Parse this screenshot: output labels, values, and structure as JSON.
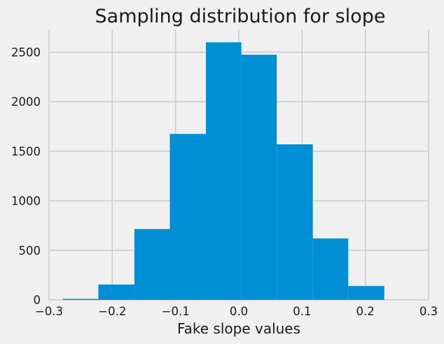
{
  "chart_data": {
    "type": "bar",
    "title": "Sampling distribution for slope",
    "xlabel": "Fake slope values",
    "ylabel": "",
    "grid": true,
    "legend": "none",
    "bar_color": "#008fd5",
    "background_color": "#f0f0f0",
    "grid_color": "#cbcbcb",
    "xlim": [
      -0.3,
      0.3
    ],
    "ylim": [
      0,
      2730
    ],
    "bins": [
      {
        "x0": -0.278,
        "x1": -0.222,
        "value": 10
      },
      {
        "x0": -0.222,
        "x1": -0.165,
        "value": 155
      },
      {
        "x0": -0.165,
        "x1": -0.109,
        "value": 715
      },
      {
        "x0": -0.109,
        "x1": -0.052,
        "value": 1675
      },
      {
        "x0": -0.052,
        "x1": 0.004,
        "value": 2600
      },
      {
        "x0": 0.004,
        "x1": 0.06,
        "value": 2475
      },
      {
        "x0": 0.06,
        "x1": 0.117,
        "value": 1570
      },
      {
        "x0": 0.117,
        "x1": 0.173,
        "value": 620
      },
      {
        "x0": 0.173,
        "x1": 0.23,
        "value": 140
      }
    ],
    "xticks": [
      -0.3,
      -0.2,
      -0.1,
      0.0,
      0.1,
      0.2,
      0.3
    ],
    "xtick_labels": [
      "−0.3",
      "−0.2",
      "−0.1",
      "0.0",
      "0.1",
      "0.2",
      "0.3"
    ],
    "yticks": [
      0,
      500,
      1000,
      1500,
      2000,
      2500
    ],
    "ytick_labels": [
      "0",
      "500",
      "1000",
      "1500",
      "2000",
      "2500"
    ]
  }
}
